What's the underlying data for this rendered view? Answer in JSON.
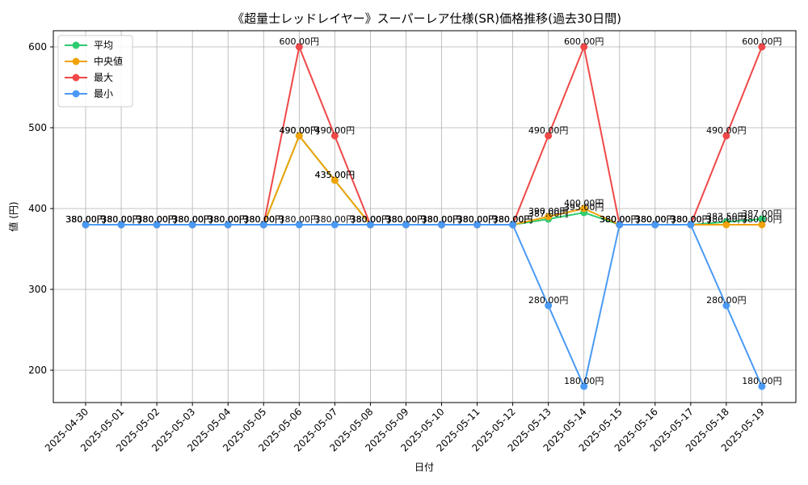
{
  "chart_data": {
    "type": "line",
    "title": "《超量士レッドレイヤー》スーパーレア仕様(SR)価格推移(過去30日間)",
    "xlabel": "日付",
    "ylabel": "値 (円)",
    "ylim": [
      160,
      620
    ],
    "yticks": [
      200,
      300,
      400,
      500,
      600
    ],
    "grid": true,
    "legend_position": "top-left",
    "categories": [
      "2025-04-30",
      "2025-05-01",
      "2025-05-02",
      "2025-05-03",
      "2025-05-04",
      "2025-05-05",
      "2025-05-06",
      "2025-05-07",
      "2025-05-08",
      "2025-05-09",
      "2025-05-10",
      "2025-05-11",
      "2025-05-12",
      "2025-05-13",
      "2025-05-14",
      "2025-05-15",
      "2025-05-16",
      "2025-05-17",
      "2025-05-18",
      "2025-05-19"
    ],
    "series": [
      {
        "name": "平均",
        "color": "#2ecc71",
        "values": [
          380,
          380,
          380,
          380,
          380,
          380,
          490,
          435,
          380,
          380,
          380,
          380,
          380,
          387,
          395,
          380,
          380,
          380,
          383.5,
          387
        ]
      },
      {
        "name": "中央値",
        "color": "#f0a30a",
        "values": [
          380,
          380,
          380,
          380,
          380,
          380,
          490,
          435,
          380,
          380,
          380,
          380,
          380,
          390,
          400,
          380,
          380,
          380,
          380,
          380
        ]
      },
      {
        "name": "最大",
        "color": "#f04848",
        "values": [
          380,
          380,
          380,
          380,
          380,
          380,
          600,
          490,
          380,
          380,
          380,
          380,
          380,
          490,
          600,
          380,
          380,
          380,
          490,
          600
        ]
      },
      {
        "name": "最小",
        "color": "#4a9af5",
        "values": [
          380,
          380,
          380,
          380,
          380,
          380,
          380,
          380,
          380,
          380,
          380,
          380,
          380,
          280,
          180,
          380,
          380,
          380,
          280,
          180
        ]
      }
    ],
    "label_suffix": "円"
  }
}
